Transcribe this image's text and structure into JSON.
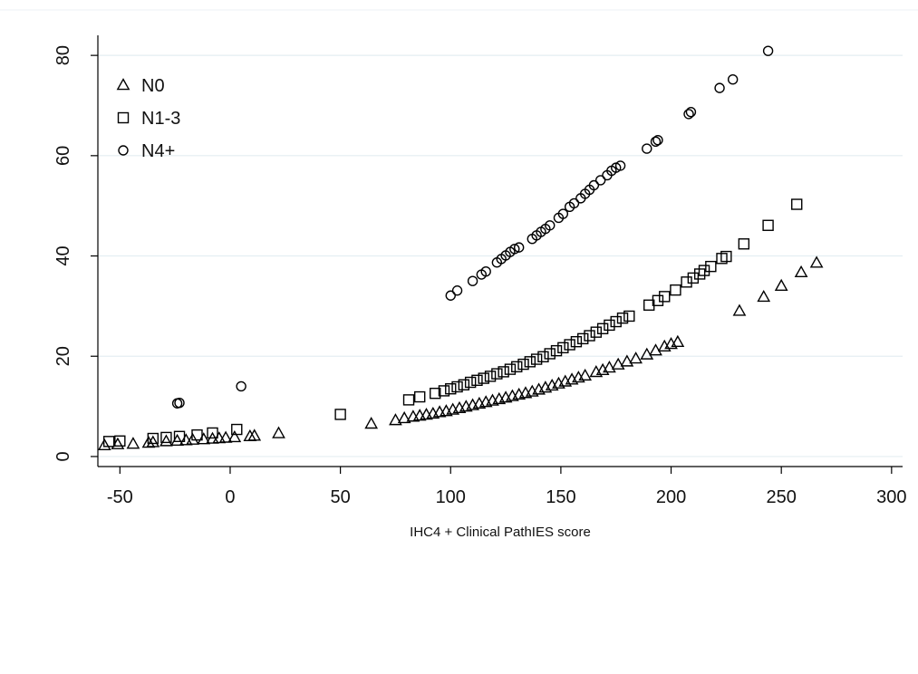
{
  "chart_data": {
    "type": "scatter",
    "title": "",
    "xlabel": "IHC4 + Clinical PathIES score",
    "ylabel": "",
    "xlim": [
      -60,
      305
    ],
    "ylim": [
      -2,
      84
    ],
    "xticks": [
      -50,
      0,
      50,
      100,
      150,
      200,
      250,
      300
    ],
    "xtick_labels": [
      "-50",
      "0",
      "50",
      "100",
      "150",
      "200",
      "250",
      "300"
    ],
    "yticks": [
      0,
      20,
      40,
      60,
      80
    ],
    "ytick_labels": [
      "0",
      "20",
      "40",
      "60",
      "80"
    ],
    "grid": "horizontal",
    "legend_position": "top-left",
    "series": [
      {
        "name": "N0",
        "marker": "triangle",
        "points": [
          [
            -57,
            2.2
          ],
          [
            -51,
            2.4
          ],
          [
            -44,
            2.5
          ],
          [
            -37,
            2.7
          ],
          [
            -35,
            2.8
          ],
          [
            -29,
            3.0
          ],
          [
            -24,
            3.1
          ],
          [
            -20,
            3.2
          ],
          [
            -17,
            3.3
          ],
          [
            -12,
            3.4
          ],
          [
            -8,
            3.5
          ],
          [
            -5,
            3.6
          ],
          [
            -2,
            3.7
          ],
          [
            2,
            3.8
          ],
          [
            9,
            4.0
          ],
          [
            11,
            4.1
          ],
          [
            22,
            4.6
          ],
          [
            64,
            6.5
          ],
          [
            75,
            7.2
          ],
          [
            79,
            7.6
          ],
          [
            83,
            7.9
          ],
          [
            86,
            8.1
          ],
          [
            89,
            8.3
          ],
          [
            92,
            8.5
          ],
          [
            95,
            8.8
          ],
          [
            98,
            9.0
          ],
          [
            101,
            9.3
          ],
          [
            104,
            9.6
          ],
          [
            107,
            9.9
          ],
          [
            110,
            10.2
          ],
          [
            113,
            10.5
          ],
          [
            116,
            10.8
          ],
          [
            119,
            11.1
          ],
          [
            122,
            11.4
          ],
          [
            125,
            11.7
          ],
          [
            128,
            12.0
          ],
          [
            131,
            12.3
          ],
          [
            134,
            12.6
          ],
          [
            137,
            12.9
          ],
          [
            140,
            13.3
          ],
          [
            143,
            13.7
          ],
          [
            146,
            14.1
          ],
          [
            149,
            14.5
          ],
          [
            152,
            14.9
          ],
          [
            155,
            15.3
          ],
          [
            158,
            15.7
          ],
          [
            161,
            16.1
          ],
          [
            166,
            16.8
          ],
          [
            169,
            17.2
          ],
          [
            172,
            17.7
          ],
          [
            176,
            18.3
          ],
          [
            180,
            18.9
          ],
          [
            184,
            19.5
          ],
          [
            189,
            20.3
          ],
          [
            193,
            21.1
          ],
          [
            197,
            21.9
          ],
          [
            200,
            22.4
          ],
          [
            203,
            22.8
          ],
          [
            231,
            29.0
          ],
          [
            242,
            31.8
          ],
          [
            250,
            34.0
          ],
          [
            259,
            36.7
          ],
          [
            266,
            38.6
          ]
        ]
      },
      {
        "name": "N1-3",
        "marker": "square",
        "points": [
          [
            -55,
            3.0
          ],
          [
            -50,
            3.1
          ],
          [
            -35,
            3.6
          ],
          [
            -29,
            3.8
          ],
          [
            -23,
            4.0
          ],
          [
            -15,
            4.3
          ],
          [
            -8,
            4.7
          ],
          [
            3,
            5.4
          ],
          [
            50,
            8.4
          ],
          [
            81,
            11.3
          ],
          [
            86,
            11.9
          ],
          [
            93,
            12.6
          ],
          [
            97,
            13.1
          ],
          [
            100,
            13.5
          ],
          [
            103,
            13.9
          ],
          [
            106,
            14.3
          ],
          [
            109,
            14.8
          ],
          [
            112,
            15.2
          ],
          [
            115,
            15.6
          ],
          [
            118,
            16.0
          ],
          [
            121,
            16.5
          ],
          [
            124,
            16.9
          ],
          [
            127,
            17.4
          ],
          [
            130,
            17.9
          ],
          [
            133,
            18.4
          ],
          [
            136,
            18.9
          ],
          [
            139,
            19.4
          ],
          [
            142,
            19.9
          ],
          [
            145,
            20.5
          ],
          [
            148,
            21.1
          ],
          [
            151,
            21.7
          ],
          [
            154,
            22.3
          ],
          [
            157,
            22.9
          ],
          [
            160,
            23.5
          ],
          [
            163,
            24.1
          ],
          [
            166,
            24.8
          ],
          [
            169,
            25.5
          ],
          [
            172,
            26.2
          ],
          [
            175,
            26.9
          ],
          [
            178,
            27.6
          ],
          [
            181,
            28.0
          ],
          [
            190,
            30.2
          ],
          [
            194,
            31.1
          ],
          [
            197,
            31.9
          ],
          [
            202,
            33.2
          ],
          [
            207,
            34.8
          ],
          [
            210,
            35.6
          ],
          [
            213,
            36.4
          ],
          [
            215,
            37.1
          ],
          [
            218,
            37.9
          ],
          [
            223,
            39.5
          ],
          [
            225,
            39.9
          ],
          [
            233,
            42.4
          ],
          [
            244,
            46.1
          ],
          [
            257,
            50.3
          ]
        ]
      },
      {
        "name": "N4+",
        "marker": "circle",
        "points": [
          [
            -24,
            10.6
          ],
          [
            -23,
            10.7
          ],
          [
            5,
            14.0
          ],
          [
            100,
            32.1
          ],
          [
            103,
            33.1
          ],
          [
            110,
            35.0
          ],
          [
            114,
            36.3
          ],
          [
            116,
            36.9
          ],
          [
            121,
            38.7
          ],
          [
            123,
            39.4
          ],
          [
            125,
            40.1
          ],
          [
            127,
            40.8
          ],
          [
            129,
            41.4
          ],
          [
            131,
            41.7
          ],
          [
            137,
            43.4
          ],
          [
            139,
            44.1
          ],
          [
            141,
            44.8
          ],
          [
            143,
            45.4
          ],
          [
            145,
            46.1
          ],
          [
            149,
            47.6
          ],
          [
            151,
            48.4
          ],
          [
            154,
            49.8
          ],
          [
            156,
            50.5
          ],
          [
            159,
            51.5
          ],
          [
            161,
            52.4
          ],
          [
            163,
            53.2
          ],
          [
            165,
            54.1
          ],
          [
            168,
            55.1
          ],
          [
            171,
            56.1
          ],
          [
            173,
            57.0
          ],
          [
            175,
            57.6
          ],
          [
            177,
            58.0
          ],
          [
            189,
            61.4
          ],
          [
            193,
            62.8
          ],
          [
            194,
            63.1
          ],
          [
            208,
            68.3
          ],
          [
            209,
            68.7
          ],
          [
            222,
            73.5
          ],
          [
            228,
            75.2
          ],
          [
            244,
            80.9
          ]
        ]
      }
    ]
  }
}
